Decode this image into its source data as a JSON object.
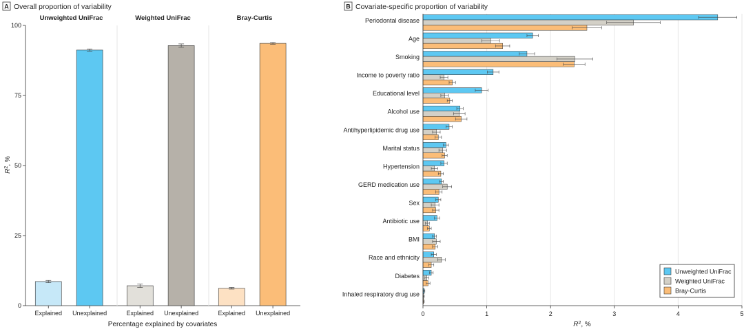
{
  "colors": {
    "unweighted": "#5dc8f2",
    "weighted": "#d3d0c7",
    "bray": "#fbbd78",
    "unweighted_explained": "#c6e8f8",
    "weighted_explained": "#e2e0da",
    "bray_explained": "#fde1c3",
    "weighted_unexplained": "#b6b1a9",
    "grid": "#e6e6e6"
  },
  "chart_data": [
    {
      "type": "bar",
      "panel_letter": "A",
      "title": "Overall proportion of variability",
      "ylabel_main": "R",
      "ylabel_sup": "2",
      "ylabel_unit": ", %",
      "xlabel": "Percentage explained by covariates",
      "ylim": [
        0,
        100
      ],
      "yticks": [
        0,
        25,
        50,
        75,
        100
      ],
      "grid": "vertical separators",
      "groups": [
        {
          "name": "Unweighted UniFrac",
          "bars": [
            {
              "label": "Explained",
              "value": 8.6,
              "err": 0.4,
              "color_key": "unweighted_explained"
            },
            {
              "label": "Unexplained",
              "value": 91.2,
              "err": 0.4,
              "color_key": "unweighted"
            }
          ]
        },
        {
          "name": "Weighted UniFrac",
          "bars": [
            {
              "label": "Explained",
              "value": 7.1,
              "err": 0.6,
              "color_key": "weighted_explained"
            },
            {
              "label": "Unexplained",
              "value": 92.8,
              "err": 0.6,
              "color_key": "weighted_unexplained"
            }
          ]
        },
        {
          "name": "Bray-Curtis",
          "bars": [
            {
              "label": "Explained",
              "value": 6.2,
              "err": 0.3,
              "color_key": "bray_explained"
            },
            {
              "label": "Unexplained",
              "value": 93.6,
              "err": 0.3,
              "color_key": "bray"
            }
          ]
        }
      ]
    },
    {
      "type": "bar",
      "orientation": "horizontal",
      "panel_letter": "B",
      "title": "Covariate-specific proportion of variability",
      "xlabel_main": "R",
      "xlabel_sup": "2",
      "xlabel_unit": ", %",
      "xlim": [
        0,
        5
      ],
      "xticks": [
        0,
        1,
        2,
        3,
        4,
        5
      ],
      "grid": "vertical",
      "legend_position": "bottom-right",
      "categories": [
        "Periodontal disease",
        "Age",
        "Smoking",
        "Income to poverty ratio",
        "Educational level",
        "Alcohol use",
        "Antihyperlipidemic drug use",
        "Marital status",
        "Hypertension",
        "GERD medication use",
        "Sex",
        "Antibiotic use",
        "BMI",
        "Race and ethnicity",
        "Diabetes",
        "Inhaled respiratory drug use"
      ],
      "series": [
        {
          "name": "Unweighted UniFrac",
          "color_key": "unweighted",
          "values": [
            4.62,
            1.72,
            1.63,
            1.1,
            0.92,
            0.58,
            0.41,
            0.36,
            0.33,
            0.29,
            0.24,
            0.22,
            0.18,
            0.17,
            0.13,
            0.02
          ],
          "errors": [
            0.3,
            0.09,
            0.12,
            0.09,
            0.1,
            0.05,
            0.05,
            0.04,
            0.05,
            0.03,
            0.04,
            0.04,
            0.03,
            0.04,
            0.03,
            0.01
          ]
        },
        {
          "name": "Weighted UniFrac",
          "color_key": "weighted",
          "values": [
            3.3,
            1.06,
            2.38,
            0.33,
            0.34,
            0.57,
            0.21,
            0.31,
            0.18,
            0.38,
            0.19,
            0.07,
            0.21,
            0.29,
            0.06,
            0.01
          ],
          "errors": [
            0.42,
            0.14,
            0.28,
            0.06,
            0.06,
            0.09,
            0.06,
            0.06,
            0.05,
            0.07,
            0.06,
            0.03,
            0.06,
            0.06,
            0.03,
            0.01
          ]
        },
        {
          "name": "Bray-Curtis",
          "color_key": "bray",
          "values": [
            2.57,
            1.25,
            2.37,
            0.46,
            0.42,
            0.6,
            0.24,
            0.34,
            0.28,
            0.25,
            0.2,
            0.1,
            0.19,
            0.13,
            0.08,
            0.01
          ],
          "errors": [
            0.23,
            0.11,
            0.17,
            0.05,
            0.04,
            0.09,
            0.05,
            0.04,
            0.04,
            0.05,
            0.05,
            0.03,
            0.04,
            0.04,
            0.03,
            0.01
          ]
        }
      ]
    }
  ]
}
